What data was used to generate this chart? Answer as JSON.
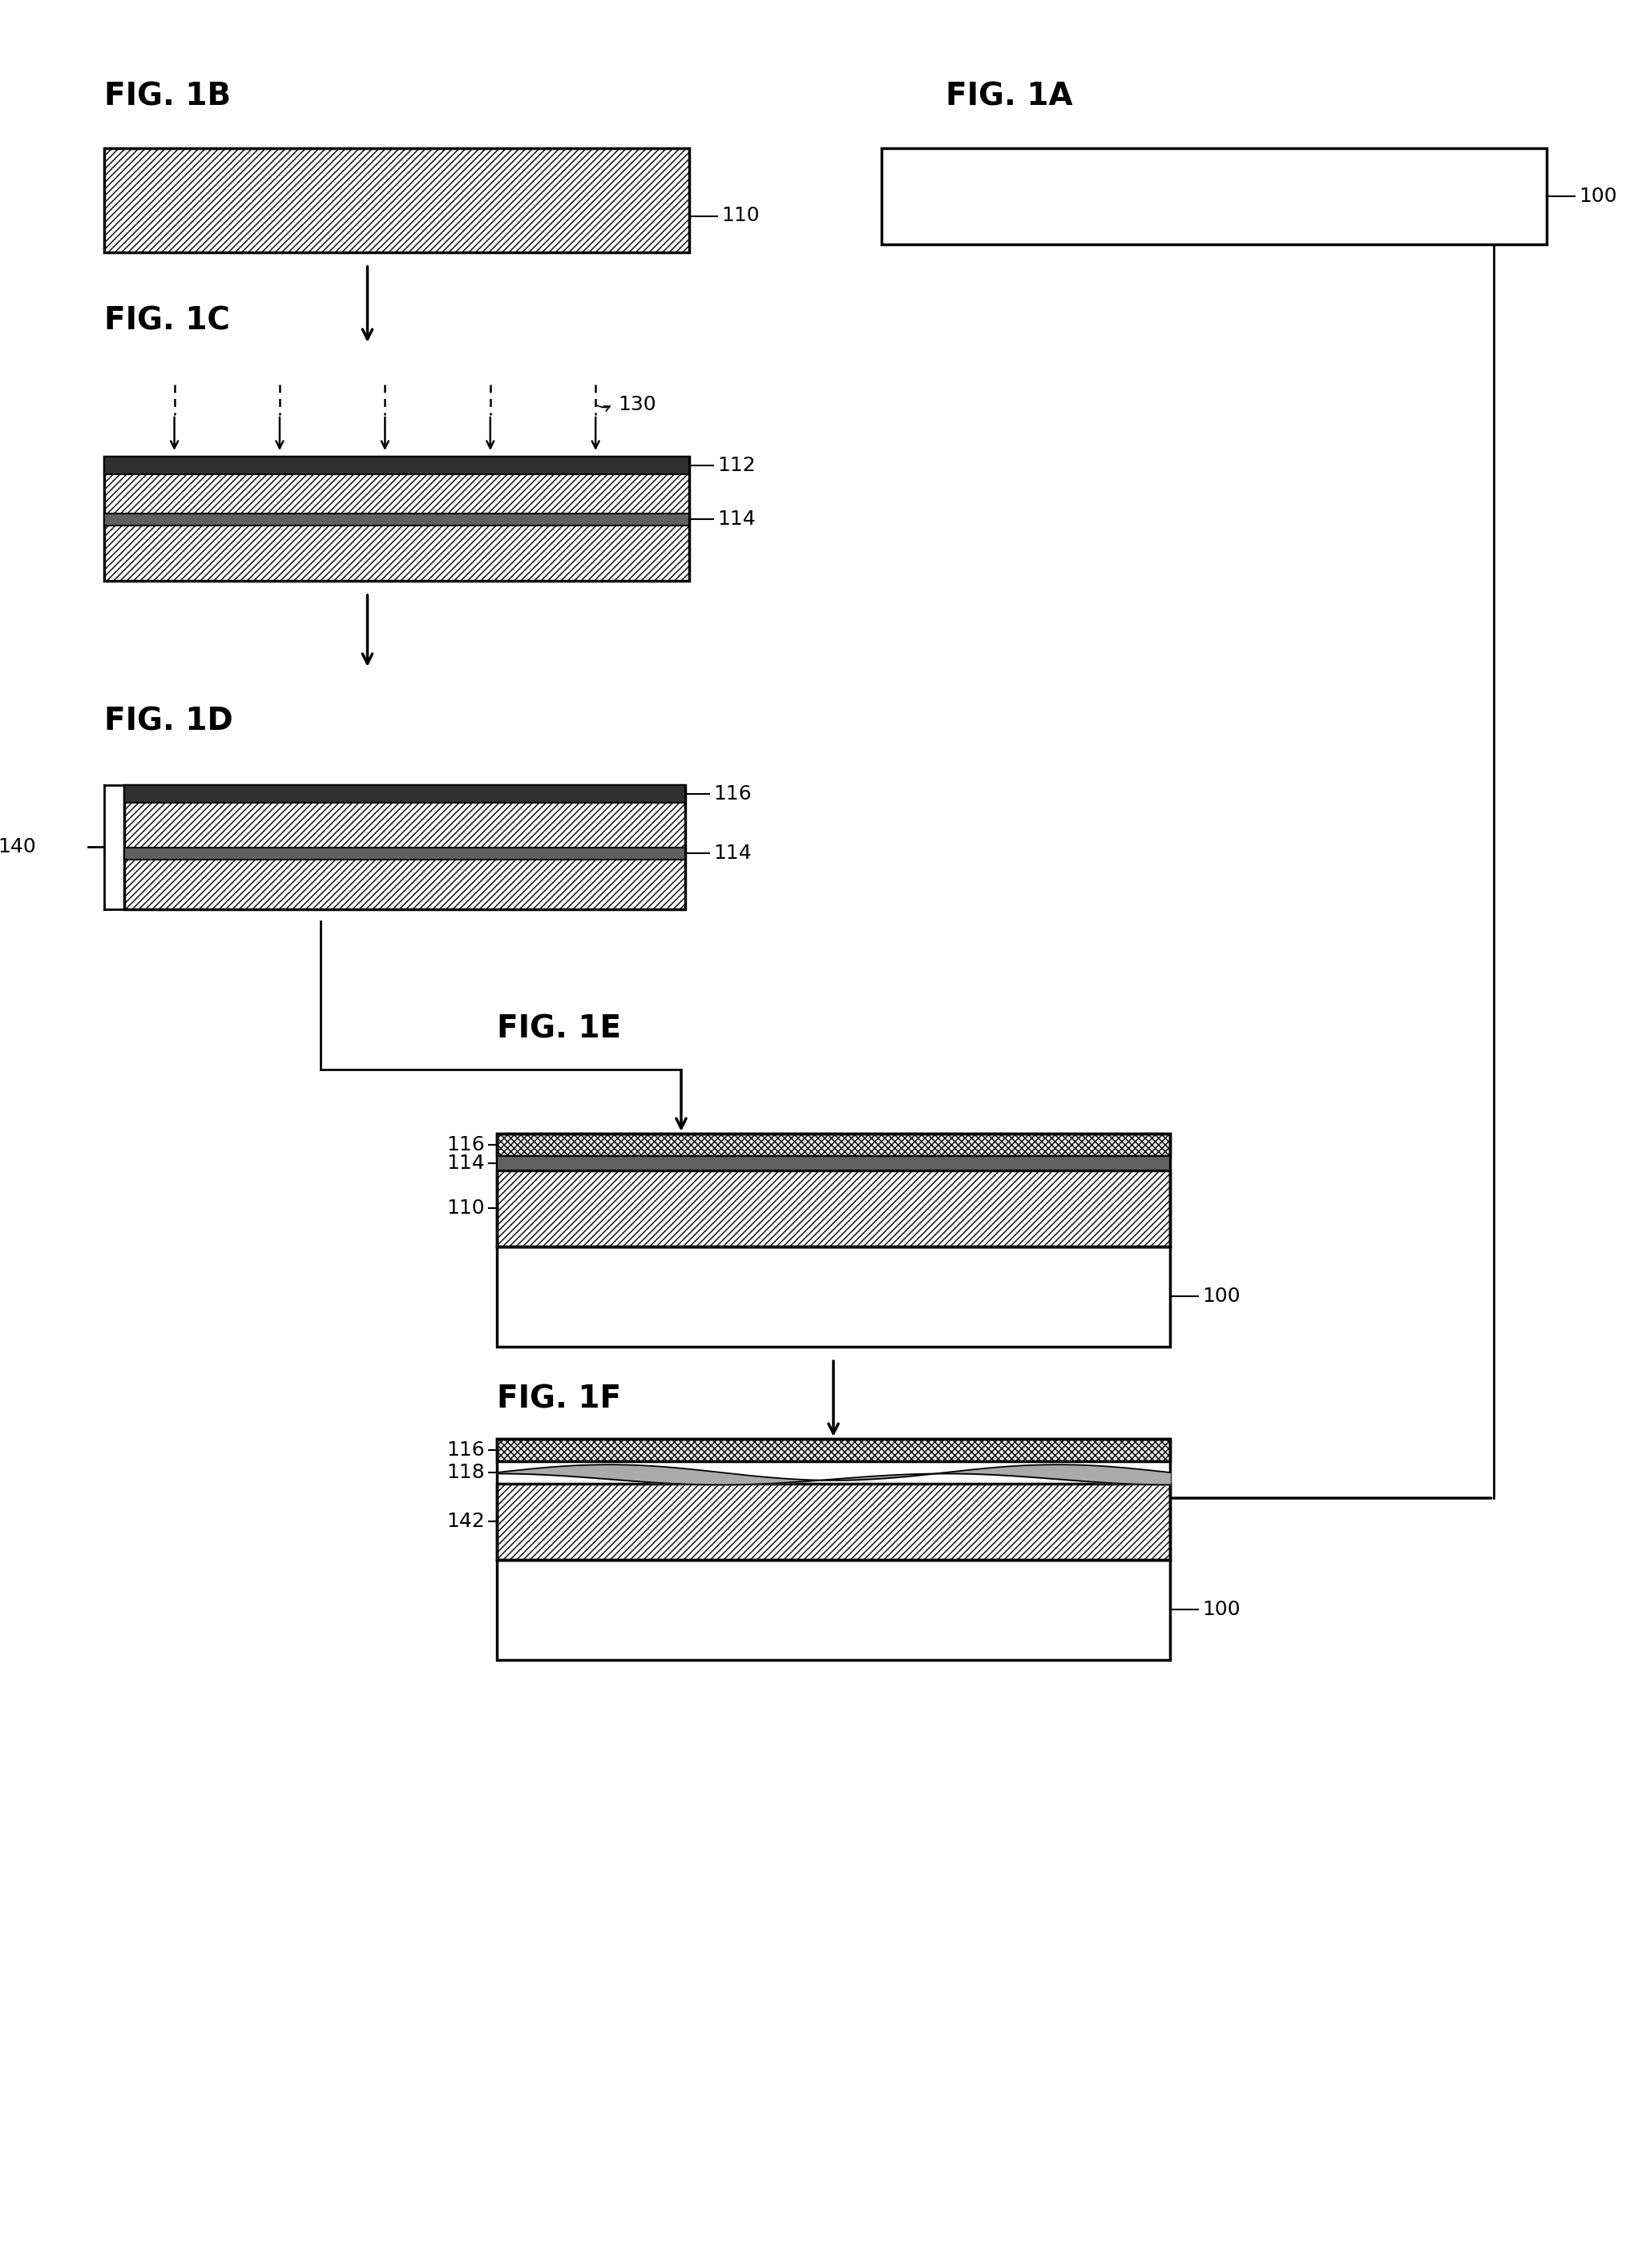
{
  "bg_color": "#ffffff",
  "line_color": "#000000",
  "fig1B_label": "FIG. 1B",
  "fig1A_label": "FIG. 1A",
  "fig1C_label": "FIG. 1C",
  "fig1D_label": "FIG. 1D",
  "fig1E_label": "FIG. 1E",
  "fig1F_label": "FIG. 1F",
  "label_fontsize": 28,
  "ref_fontsize": 18,
  "dark_band_color": "#606060",
  "hatch_pattern": "////",
  "dense_hatch": "xxxx"
}
